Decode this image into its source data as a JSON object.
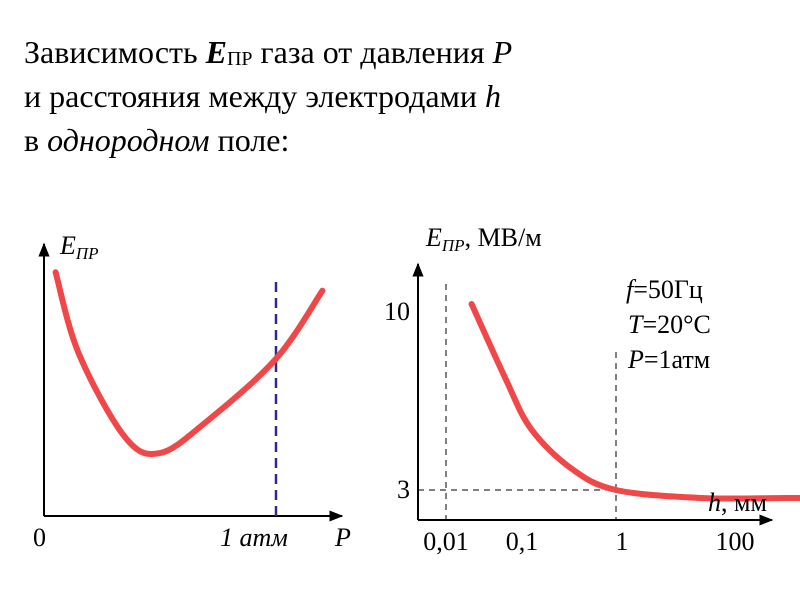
{
  "heading": {
    "line1_pre": "Зависимость ",
    "line1_sym": "E",
    "line1_sub": "ПР",
    "line1_post": " газа от давления ",
    "line1_var": "P",
    "line2_pre": "и расстояния между электродами ",
    "line2_var": "h",
    "line3_pre": "в ",
    "line3_em": "однородном",
    "line3_post": " поле:"
  },
  "colors": {
    "curve": "#f04848",
    "dashed_left": "#2c2c8c",
    "axis": "#000000"
  },
  "chart_data": [
    {
      "type": "line",
      "ylabel_sym": "E",
      "ylabel_sub": "ПР",
      "xlabel": "P",
      "origin_label": "0",
      "annotation": "1 атм",
      "x_ticks": [
        "0",
        "1 атм"
      ],
      "series": [
        {
          "x": [
            0.05,
            0.15,
            0.35,
            0.5,
            0.7,
            1.0,
            1.2
          ],
          "y": [
            0.93,
            0.62,
            0.3,
            0.24,
            0.36,
            0.6,
            0.86
          ]
        }
      ],
      "vline": {
        "x": 1.0
      },
      "xlim": [
        0,
        1.25
      ],
      "ylim": [
        0,
        1
      ]
    },
    {
      "type": "line",
      "ylabel_sym": "E",
      "ylabel_sub": "ПР",
      "ylabel_unit": ", МВ/м",
      "xlabel_var": "h",
      "xlabel_unit": ", мм",
      "x_scale": "log",
      "x_ticks": [
        "0,01",
        "0,1",
        "1",
        "100"
      ],
      "x_tick_values": [
        0.01,
        0.1,
        1,
        100
      ],
      "y_ticks": [
        "3",
        "10"
      ],
      "y_tick_values": [
        3,
        10
      ],
      "legend_lines": [
        {
          "var": "f",
          "text": "=50Гц"
        },
        {
          "var": "T",
          "text": "=20°C"
        },
        {
          "var": "P",
          "text": "=1атм"
        }
      ],
      "series": [
        {
          "x": [
            0.02,
            0.05,
            0.1,
            0.3,
            1,
            10,
            100,
            200
          ],
          "y": [
            10,
            7.2,
            5.3,
            3.8,
            3.0,
            2.7,
            2.7,
            2.7
          ]
        }
      ],
      "xlim": [
        0.006,
        300
      ],
      "ylim": [
        1.9,
        11.6
      ]
    }
  ]
}
